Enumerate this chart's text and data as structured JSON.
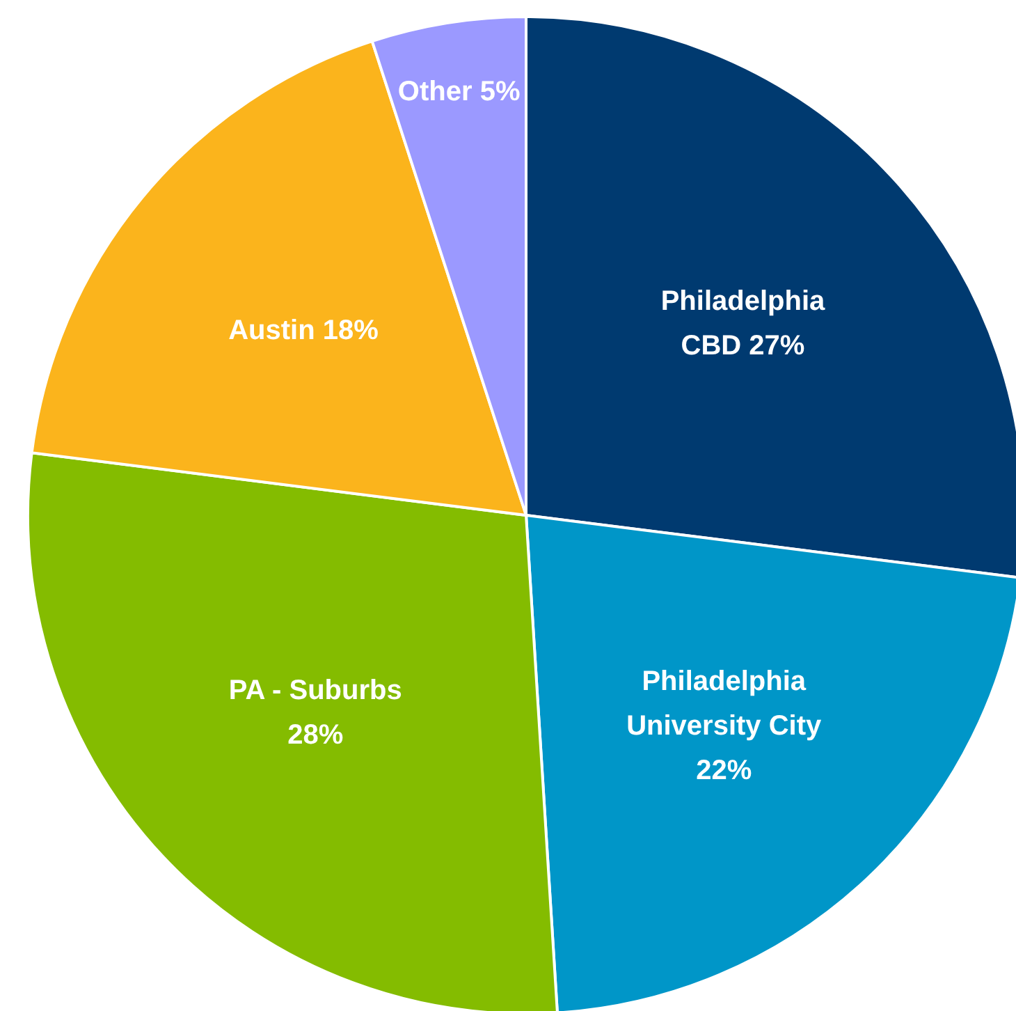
{
  "chart_data": {
    "type": "pie",
    "categories": [
      "Philadelphia CBD",
      "Philadelphia University City",
      "PA - Suburbs",
      "Austin",
      "Other"
    ],
    "values": [
      27,
      22,
      28,
      18,
      5
    ],
    "colors": [
      "#003a70",
      "#0096c8",
      "#84bc00",
      "#fbb41c",
      "#9b99ff"
    ],
    "value_labels": [
      "27%",
      "22%",
      "28%",
      "18%",
      "5%"
    ],
    "legend": false
  }
}
